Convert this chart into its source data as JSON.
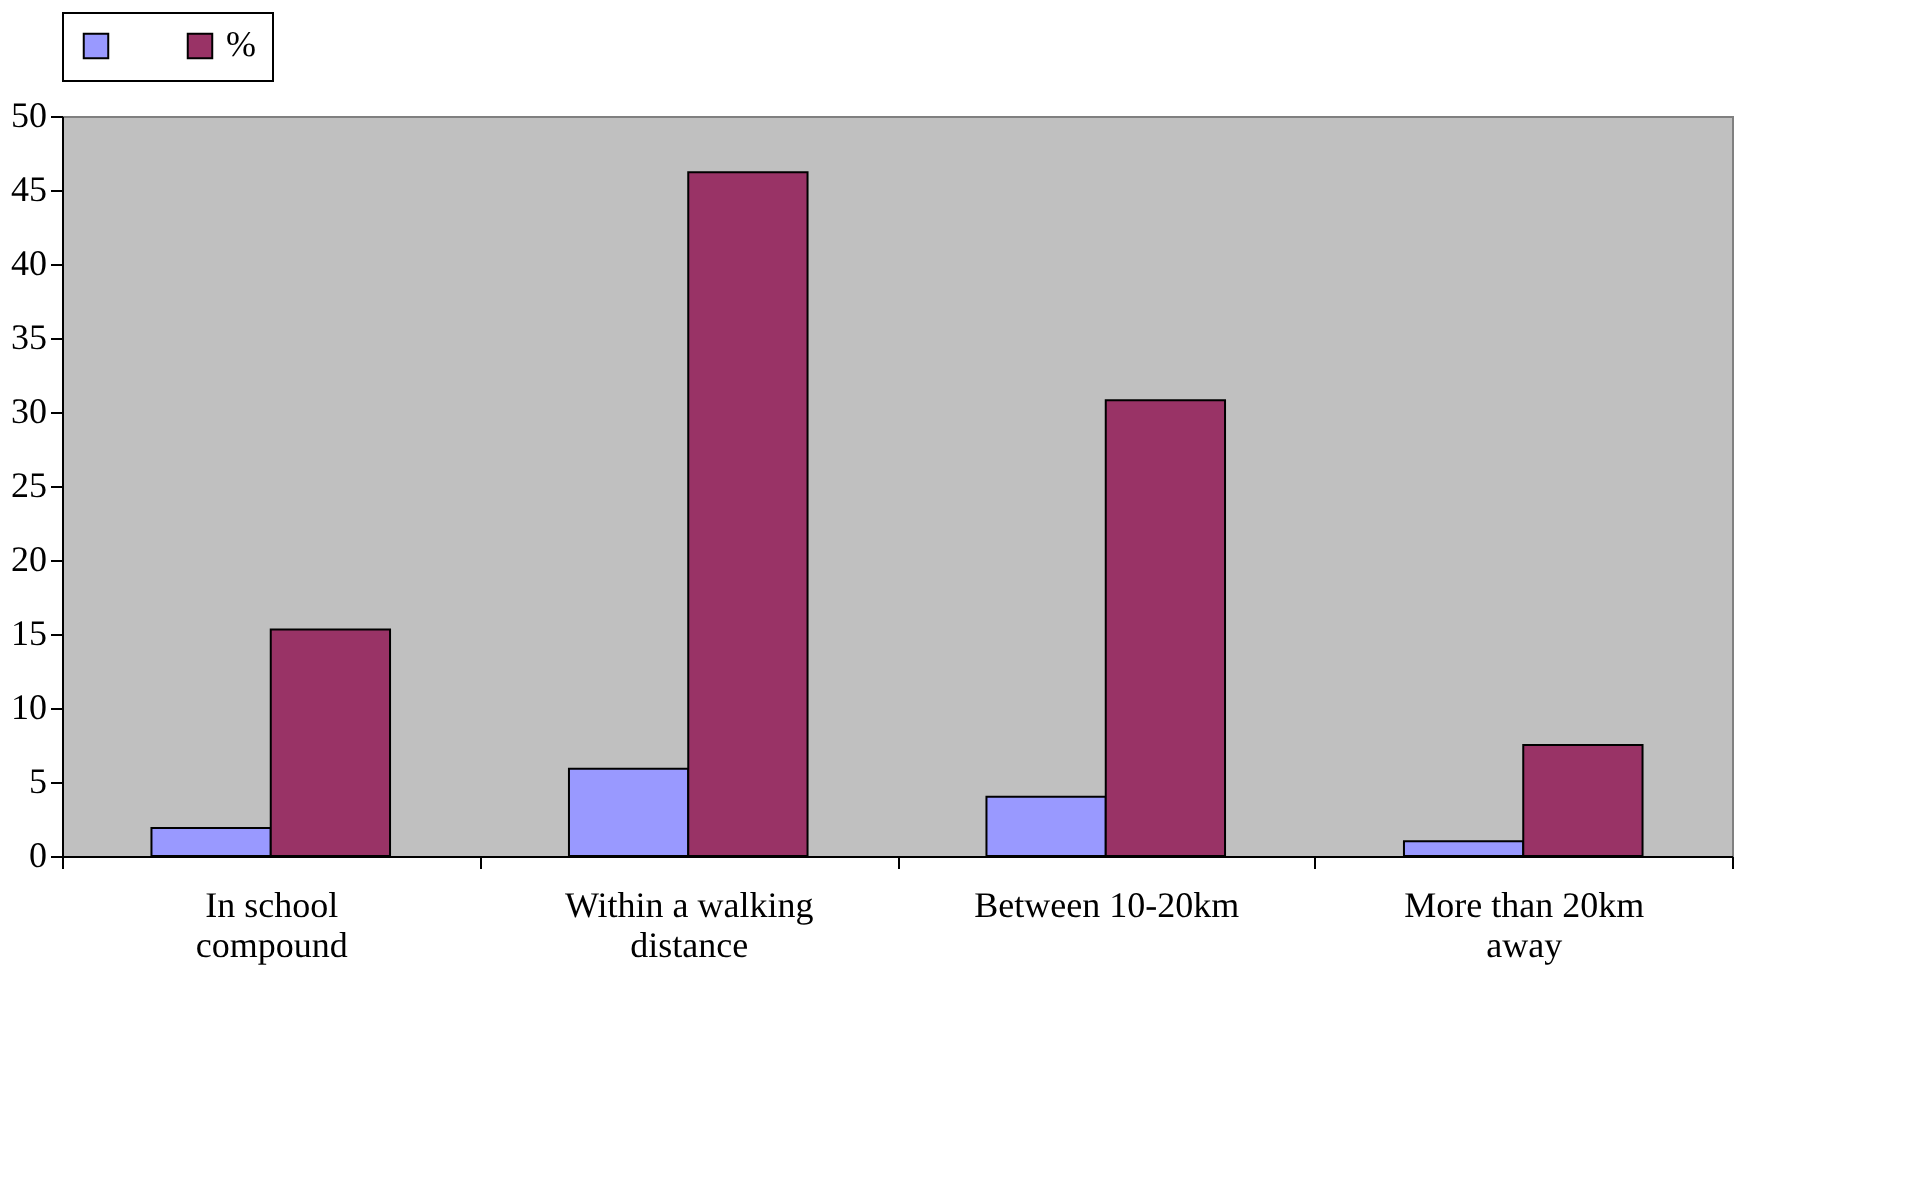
{
  "chart_data": {
    "type": "bar",
    "categories": [
      "In school compound",
      "Within a walking distance",
      "Between 10-20km",
      "More than 20km away"
    ],
    "series": [
      {
        "color": "#9999ff",
        "values": [
          1.9,
          5.9,
          4.0,
          1.0
        ]
      },
      {
        "name": "%",
        "color": "#993366",
        "values": [
          15.3,
          46.2,
          30.8,
          7.5
        ]
      }
    ],
    "ylim": [
      0,
      50
    ],
    "yticks": [
      0,
      5,
      10,
      15,
      20,
      25,
      30,
      35,
      40,
      45,
      50
    ],
    "grid": false,
    "legend": "top"
  }
}
